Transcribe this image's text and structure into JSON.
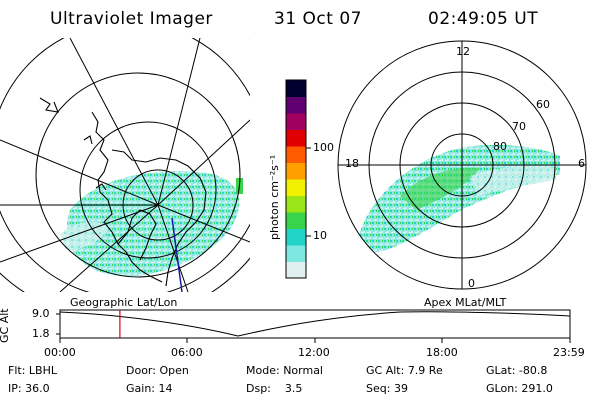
{
  "header": {
    "instrument": "Ultraviolet Imager",
    "date": "31 Oct 07",
    "time": "02:49:05 UT"
  },
  "maps": {
    "left_label": "Geographic Lat/Lon",
    "right_label": "Apex  MLat/MLT",
    "right_lat_labels": [
      "80",
      "70",
      "60"
    ],
    "right_mlt_labels": [
      "12",
      "18",
      "6",
      "0"
    ]
  },
  "colorbar": {
    "unit_label": "photon cm⁻²s⁻¹",
    "tick_labels": [
      "100",
      "10"
    ],
    "scale": "log",
    "colors": [
      "#e0f0f0",
      "#7ee8e0",
      "#22d4c8",
      "#3ad44a",
      "#9be619",
      "#f0f000",
      "#ffa000",
      "#ff5a00",
      "#e00000",
      "#a00060",
      "#600070",
      "#000030"
    ]
  },
  "altitude_strip": {
    "axis_label": "GC Alt",
    "y_ticks": [
      "9.0",
      "1.8"
    ],
    "x_ticks": [
      "00:00",
      "06:00",
      "12:00",
      "18:00",
      "23:59"
    ],
    "cursor_time": "02:49"
  },
  "status": {
    "filter_label": "Flt:",
    "filter_value": "LBHL",
    "ip_label": "IP:",
    "ip_value": "36.0",
    "door_label": "Door:",
    "door_value": "Open",
    "gain_label": "Gain:",
    "gain_value": "14",
    "mode_label": "Mode:",
    "mode_value": "Normal",
    "dsp_label": "Dsp:",
    "dsp_value": "3.5",
    "gcalt_label": "GC Alt:",
    "gcalt_value": "7.9 Re",
    "seq_label": "Seq:",
    "seq_value": "39",
    "glat_label": "GLat:",
    "glat_value": "-80.8",
    "glon_label": "GLon:",
    "glon_value": "291.0"
  },
  "colors": {
    "cursor": "#e00000",
    "continent": "#000000",
    "track": "#1a1aa0"
  }
}
